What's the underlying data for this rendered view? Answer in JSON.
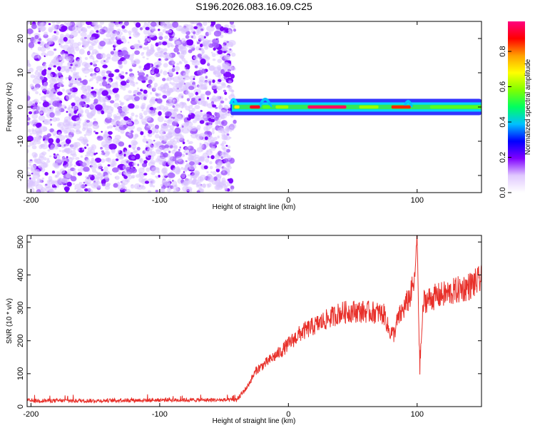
{
  "figure": {
    "title": "S196.2026.083.16.09.C25"
  },
  "chart_data": [
    {
      "type": "heatmap",
      "title": "",
      "xlabel": "Height of straight line (km)",
      "ylabel": "Frequency (Hz)",
      "xlim": [
        -203,
        150
      ],
      "ylim": [
        -25,
        25
      ],
      "xticks": [
        "-200",
        "-100",
        "0",
        "100"
      ],
      "xtick_values": [
        -200,
        -100,
        0,
        100
      ],
      "yticks": [
        "20",
        "10",
        "0",
        "-10",
        "-20"
      ],
      "ytick_values": [
        20,
        10,
        0,
        -10,
        -20
      ],
      "noise_region_x": [
        -203,
        -43
      ],
      "signal_line_x": [
        -45,
        150
      ],
      "signal_center_hz": 0,
      "signal_halfwidth_hz": 1.5,
      "colorbar": {
        "label": "Normalized spectral amplitude",
        "ticks": [
          "0.0",
          "0.2",
          "0.4",
          "0.6",
          "0.8"
        ],
        "tick_values": [
          0.0,
          0.2,
          0.4,
          0.6,
          0.8
        ],
        "range": [
          0,
          0.97
        ],
        "colors": [
          "#ffffff",
          "#e0c8ff",
          "#8000ff",
          "#0000ff",
          "#00c0ff",
          "#00ff60",
          "#80ff00",
          "#ffff00",
          "#ffa000",
          "#ff0000",
          "#ff0080"
        ]
      },
      "peak_segments": [
        {
          "x": [
            -42,
            -38
          ],
          "level": 0.7
        },
        {
          "x": [
            -30,
            -22
          ],
          "level": 0.9
        },
        {
          "x": [
            -20,
            -14
          ],
          "level": 0.55
        },
        {
          "x": [
            -10,
            0
          ],
          "level": 0.6
        },
        {
          "x": [
            15,
            45
          ],
          "level": 0.95
        },
        {
          "x": [
            55,
            70
          ],
          "level": 0.6
        },
        {
          "x": [
            80,
            95
          ],
          "level": 0.85
        },
        {
          "x": [
            110,
            150
          ],
          "level": 0.55
        }
      ]
    },
    {
      "type": "line",
      "title": "",
      "xlabel": "Height of straight line (km)",
      "ylabel": "SNR (10 * v/v)",
      "xlim": [
        -203,
        150
      ],
      "ylim": [
        0,
        520
      ],
      "xticks": [
        "-200",
        "-100",
        "0",
        "100"
      ],
      "xtick_values": [
        -200,
        -100,
        0,
        100
      ],
      "yticks": [
        "500",
        "400",
        "300",
        "200",
        "100",
        "0"
      ],
      "ytick_values": [
        500,
        400,
        300,
        200,
        100,
        0
      ],
      "series": [
        {
          "name": "SNR",
          "color": "#e8302a",
          "x": [
            -203,
            -150,
            -100,
            -60,
            -40,
            -32,
            -25,
            -15,
            -5,
            0,
            10,
            20,
            30,
            40,
            50,
            60,
            70,
            75,
            78,
            82,
            85,
            90,
            95,
            98,
            100,
            102,
            105,
            115,
            125,
            140,
            150
          ],
          "values": [
            18,
            18,
            20,
            20,
            20,
            60,
            110,
            140,
            170,
            190,
            225,
            245,
            265,
            285,
            290,
            288,
            285,
            278,
            230,
            220,
            265,
            300,
            340,
            380,
            520,
            120,
            320,
            335,
            345,
            365,
            385
          ]
        }
      ]
    }
  ]
}
